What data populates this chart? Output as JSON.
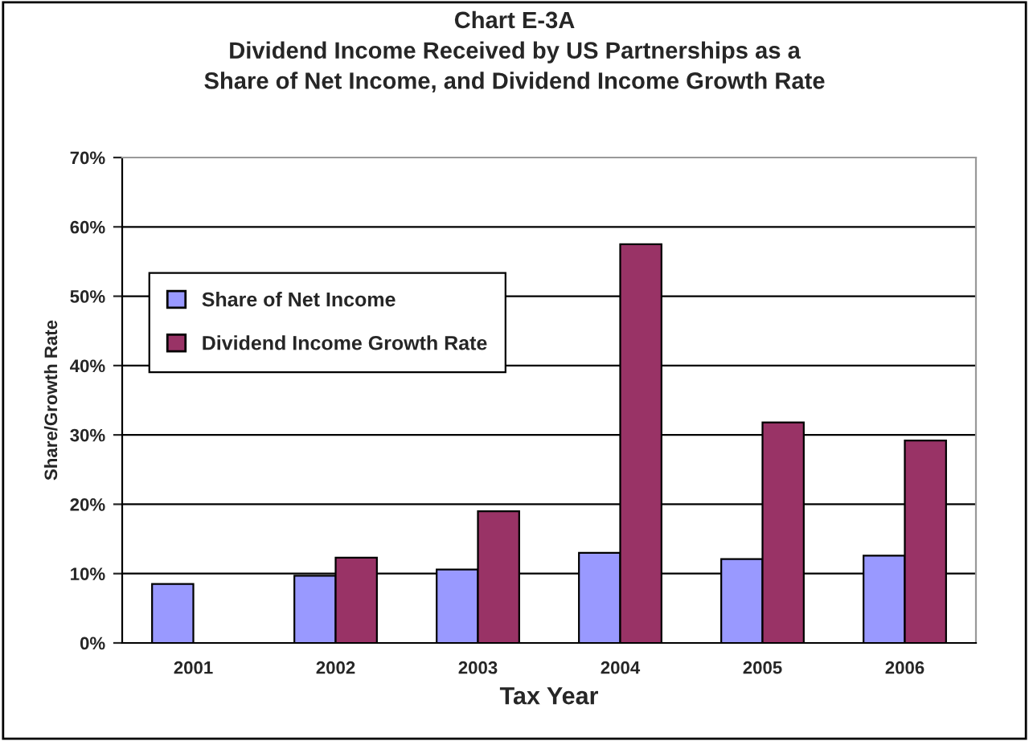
{
  "chart_data": {
    "type": "bar",
    "title": "Chart E-3A\nDividend Income Received by US Partnerships as a\nShare of Net Income, and Dividend Income Growth Rate",
    "xlabel": "Tax Year",
    "ylabel": "Share/Growth Rate",
    "categories": [
      "2001",
      "2002",
      "2003",
      "2004",
      "2005",
      "2006"
    ],
    "series": [
      {
        "name": "Share of Net Income",
        "color": "#9999ff",
        "values": [
          8.5,
          9.7,
          10.6,
          13.0,
          12.1,
          12.6
        ]
      },
      {
        "name": "Dividend Income Growth Rate",
        "color": "#993366",
        "values": [
          null,
          12.3,
          19.0,
          57.5,
          31.8,
          29.2
        ]
      }
    ],
    "ylim": [
      0,
      70
    ],
    "yticks": [
      {
        "value": 0,
        "label": "0%"
      },
      {
        "value": 10,
        "label": "10%"
      },
      {
        "value": 20,
        "label": "20%"
      },
      {
        "value": 30,
        "label": "30%"
      },
      {
        "value": 40,
        "label": "40%"
      },
      {
        "value": 50,
        "label": "50%"
      },
      {
        "value": 60,
        "label": "60%"
      },
      {
        "value": 70,
        "label": "70%"
      }
    ],
    "grid": "y",
    "legend": "left"
  }
}
